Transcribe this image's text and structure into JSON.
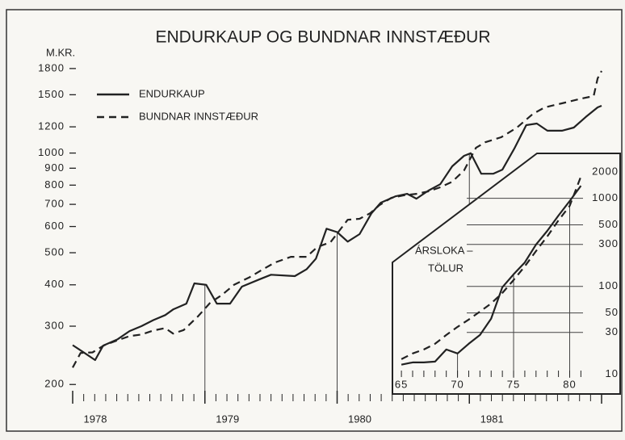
{
  "chart_data": [
    {
      "type": "line",
      "title": "ENDURKAUP OG BUNDNAR INNSTÆÐUR",
      "y_label": "M.KR.",
      "log_y": true,
      "grid": true,
      "legend": "upper left",
      "xlim": [
        1978,
        1982
      ],
      "ylim": [
        179,
        1850
      ],
      "xticks": [
        1978,
        1979,
        1980,
        1981
      ],
      "yticks": [
        200,
        300,
        400,
        500,
        600,
        700,
        800,
        900,
        1000,
        1200,
        1500,
        1800
      ],
      "series": [
        {
          "name": "ENDURKAUP",
          "color": "#222222",
          "dash": false,
          "x": [
            1978.0,
            1978.09,
            1978.17,
            1978.23,
            1978.34,
            1978.43,
            1978.52,
            1978.61,
            1978.7,
            1978.76,
            1978.86,
            1978.92,
            1979.01,
            1979.09,
            1979.19,
            1979.28,
            1979.41,
            1979.5,
            1979.68,
            1979.77,
            1979.84,
            1979.92,
            1980.0,
            1980.08,
            1980.17,
            1980.26,
            1980.33,
            1980.44,
            1980.53,
            1980.6,
            1980.69,
            1980.78,
            1980.87,
            1980.96,
            1981.01,
            1981.09,
            1981.18,
            1981.25,
            1981.34,
            1981.43,
            1981.51,
            1981.59,
            1981.7,
            1981.79,
            1981.88,
            1981.97,
            1982.0
          ],
          "values": [
            263,
            249,
            237,
            262,
            274,
            290,
            300,
            313,
            324,
            337,
            351,
            404,
            400,
            351,
            351,
            395,
            415,
            429,
            425,
            446,
            480,
            591,
            577,
            540,
            569,
            658,
            708,
            740,
            753,
            728,
            770,
            805,
            912,
            981,
            999,
            866,
            866,
            891,
            1031,
            1214,
            1228,
            1168,
            1168,
            1194,
            1285,
            1374,
            1389
          ]
        },
        {
          "name": "BUNDNAR INNSTÆÐUR",
          "color": "#222222",
          "dash": true,
          "x": [
            1978.0,
            1978.06,
            1978.15,
            1978.24,
            1978.34,
            1978.43,
            1978.52,
            1978.61,
            1978.7,
            1978.76,
            1978.84,
            1978.95,
            1979.04,
            1979.13,
            1979.22,
            1979.34,
            1979.44,
            1979.53,
            1979.65,
            1979.77,
            1979.85,
            1979.95,
            1980.08,
            1980.17,
            1980.25,
            1980.32,
            1980.41,
            1980.5,
            1980.6,
            1980.69,
            1980.78,
            1980.87,
            1980.96,
            1981.05,
            1981.12,
            1981.24,
            1981.36,
            1981.48,
            1981.57,
            1981.7,
            1981.85,
            1981.94,
            1981.97,
            1982.0
          ],
          "values": [
            225,
            249,
            250,
            263,
            272,
            280,
            283,
            291,
            296,
            285,
            292,
            322,
            353,
            373,
            400,
            422,
            446,
            467,
            486,
            486,
            520,
            538,
            629,
            633,
            658,
            696,
            732,
            745,
            753,
            766,
            788,
            819,
            886,
            1037,
            1078,
            1116,
            1194,
            1313,
            1374,
            1413,
            1461,
            1486,
            1681,
            1770
          ]
        }
      ]
    },
    {
      "type": "line",
      "annotation": [
        "ÁRSLOKA –",
        "TÖLUR"
      ],
      "log_y": true,
      "grid": true,
      "xlim": [
        64.2,
        84.5
      ],
      "ylim": [
        6,
        3240
      ],
      "xticks": [
        65,
        70,
        75,
        80
      ],
      "yticks": [
        10,
        30,
        50,
        100,
        300,
        500,
        1000,
        2000
      ],
      "series": [
        {
          "name": "ENDURKAUP",
          "color": "#222222",
          "dash": false,
          "x": [
            65,
            66,
            67,
            68,
            69,
            70,
            71,
            72,
            73,
            74,
            75,
            76,
            77,
            78,
            79,
            80,
            81
          ],
          "values": [
            12.9,
            13.7,
            13.7,
            14,
            19.2,
            17.3,
            22.3,
            28.1,
            42.9,
            97.7,
            137,
            187,
            299,
            427,
            638,
            933,
            1390
          ]
        },
        {
          "name": "BUNDNAR INNSTÆÐUR",
          "color": "#222222",
          "dash": true,
          "x": [
            65,
            66,
            67,
            68,
            69,
            70,
            71,
            72,
            73,
            74,
            75,
            76,
            77,
            78,
            79,
            80,
            81
          ],
          "values": [
            14.9,
            17.3,
            19.2,
            22.3,
            28.1,
            34.7,
            42,
            51.8,
            64,
            84.2,
            118,
            169,
            252,
            369,
            562,
            822,
            1770
          ]
        }
      ]
    }
  ]
}
